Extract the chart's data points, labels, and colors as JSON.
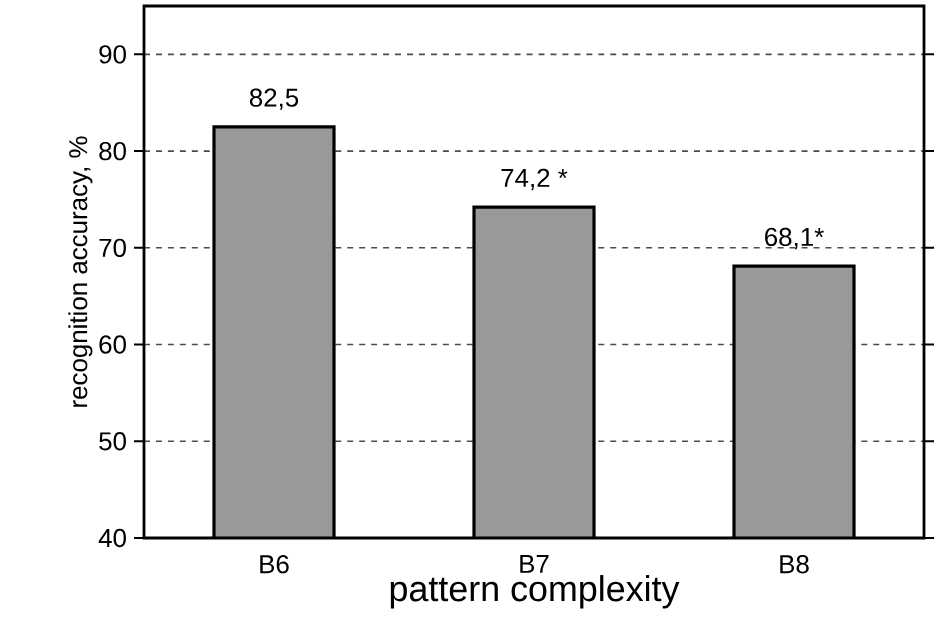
{
  "chart_data": {
    "type": "bar",
    "xlabel": "pattern complexity",
    "ylabel": "recognition accuracy, %",
    "categories": [
      "B6",
      "B7",
      "B8"
    ],
    "values": [
      82.5,
      74.2,
      68.1
    ],
    "value_labels": [
      "82,5",
      "74,2 *",
      "68,1*"
    ],
    "color": "#999999",
    "ylim": [
      40,
      95
    ],
    "yticks": [
      40,
      50,
      60,
      70,
      80,
      90
    ],
    "grid": "y"
  }
}
